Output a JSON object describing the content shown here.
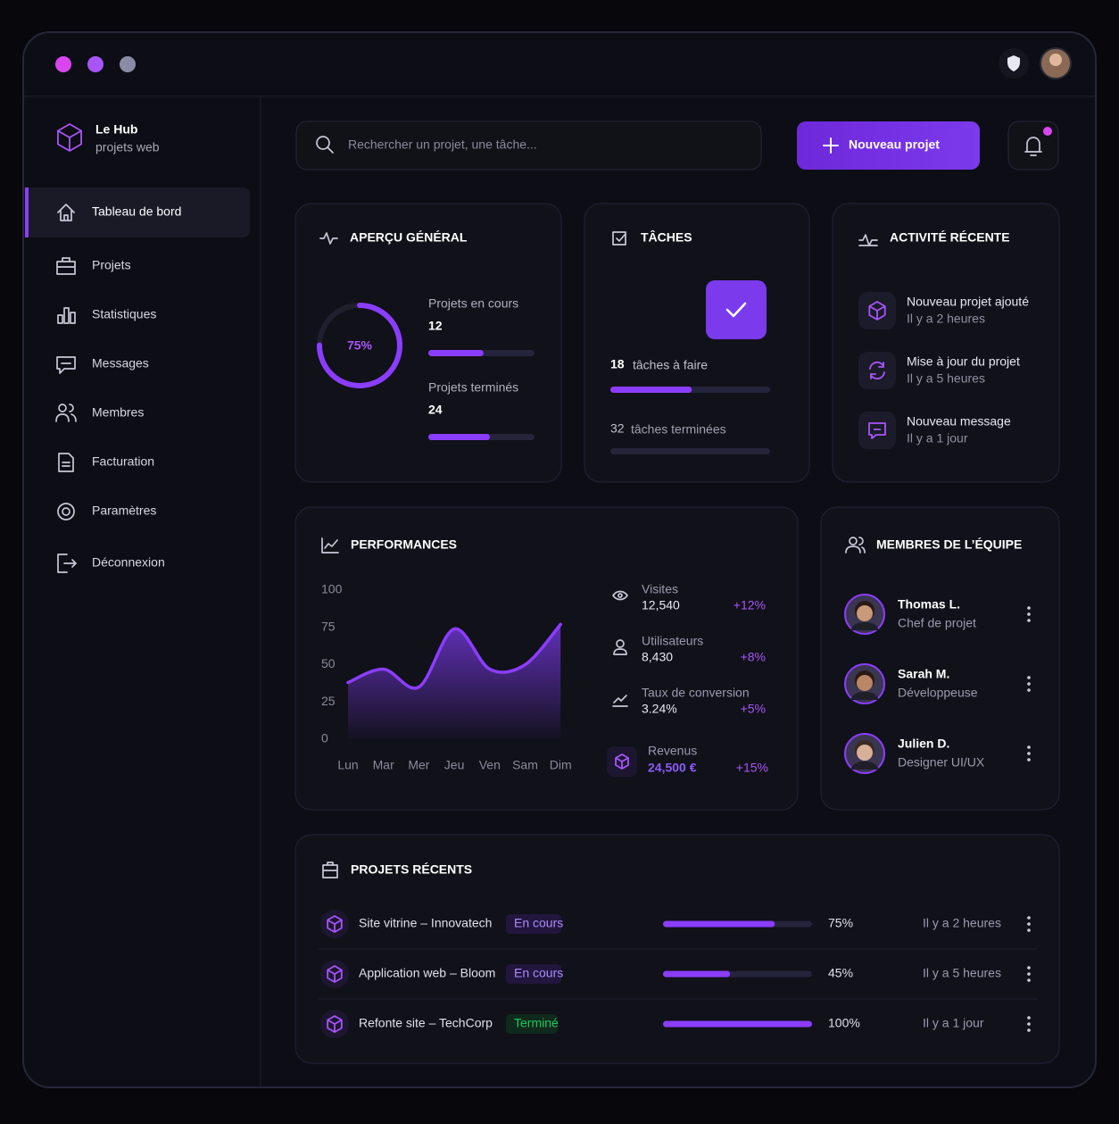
{
  "brand": {
    "name": "Le Hub",
    "tagline": "projets web"
  },
  "nav": [
    "Tableau de bord",
    "Projets",
    "Statistiques",
    "Messages",
    "Membres",
    "Facturation",
    "Paramètres",
    "Déconnexion"
  ],
  "search": {
    "placeholder": "Rechercher un projet, une tâche..."
  },
  "new_project": "Nouveau projet",
  "overview": {
    "title": "APERÇU GÉNÉRAL",
    "ring": {
      "value": 75,
      "label": "75%"
    },
    "stats": [
      {
        "label": "Projets en cours",
        "value": 12,
        "progress": 52
      },
      {
        "label": "Projets terminés",
        "value": 24,
        "progress": 58
      }
    ]
  },
  "tasks": {
    "title": "TÂCHES",
    "todo": {
      "count": 18,
      "label": "tâches à faire",
      "progress": 51
    },
    "done": {
      "count": 32,
      "label": "tâches terminées"
    }
  },
  "activity": {
    "title": "ACTIVITÉ RÉCENTE",
    "items": [
      {
        "title": "Nouveau projet ajouté",
        "time": "Il y a 2 heures"
      },
      {
        "title": "Mise à jour du projet",
        "time": "Il y a 5 heures"
      },
      {
        "title": "Nouveau message",
        "time": "Il y a 1 jour"
      }
    ]
  },
  "performance": {
    "title": "PERFORMANCES",
    "chart": {
      "type": "area",
      "categories": [
        "Lun",
        "Mar",
        "Mer",
        "Jeu",
        "Ven",
        "Sam",
        "Dim"
      ],
      "values": [
        38,
        47,
        35,
        74,
        47,
        50,
        77
      ],
      "ylim": [
        0,
        100
      ],
      "yticks": [
        0,
        25,
        50,
        75,
        100
      ],
      "color": "#8b3dff"
    },
    "stats": [
      {
        "label": "Visites",
        "value": "12,540",
        "change": "+12%"
      },
      {
        "label": "Utilisateurs",
        "value": "8,430",
        "change": "+8%"
      },
      {
        "label": "Taux de conversion",
        "value": "3.24%",
        "change": "+5%"
      },
      {
        "label": "Revenus",
        "value": "24,500 €",
        "change": "+15%"
      }
    ]
  },
  "team": {
    "title": "MEMBRES DE L’ÉQUIPE",
    "members": [
      {
        "name": "Thomas L.",
        "role": "Chef de projet"
      },
      {
        "name": "Sarah M.",
        "role": "Développeuse"
      },
      {
        "name": "Julien D.",
        "role": "Designer UI/UX"
      }
    ]
  },
  "projects": {
    "title": "PROJETS RÉCENTS",
    "rows": [
      {
        "name": "Site vitrine – Innovatech",
        "status": {
          "label": "En cours",
          "color": "#a78bfa"
        },
        "progress": {
          "value": 75,
          "label": "75%"
        },
        "time": "Il y a 2 heures"
      },
      {
        "name": "Application web – Bloom",
        "status": {
          "label": "En cours",
          "color": "#a78bfa"
        },
        "progress": {
          "value": 45,
          "label": "45%"
        },
        "time": "Il y a 5 heures"
      },
      {
        "name": "Refonte site – TechCorp",
        "status": {
          "label": "Terminé",
          "color": "#22c55e"
        },
        "progress": {
          "value": 100,
          "label": "100%"
        },
        "time": "Il y a 1 jour"
      }
    ]
  }
}
